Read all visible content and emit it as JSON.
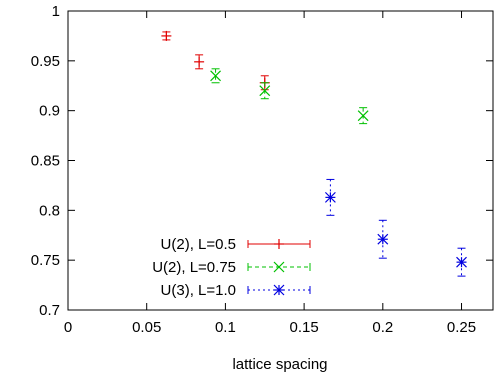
{
  "chart_data": {
    "type": "scatter",
    "title": "",
    "xlabel": "lattice spacing",
    "ylabel": "",
    "xlim": [
      0,
      0.27
    ],
    "ylim": [
      0.7,
      1.0
    ],
    "xticks": [
      0,
      0.05,
      0.1,
      0.15,
      0.2,
      0.25
    ],
    "xtick_labels": [
      "0",
      "0.05",
      "0.1",
      "0.15",
      "0.2",
      "0.25"
    ],
    "yticks": [
      0.7,
      0.75,
      0.8,
      0.85,
      0.9,
      0.95,
      1.0
    ],
    "ytick_labels": [
      "0.7",
      "0.75",
      "0.8",
      "0.85",
      "0.9",
      "0.95",
      "1"
    ],
    "grid": false,
    "legend_position": "bottom-left",
    "series": [
      {
        "name": "U(2), L=0.5",
        "color": "#e00000",
        "marker": "plus",
        "line_style": "solid",
        "points": [
          {
            "x": 0.0625,
            "y": 0.975,
            "err": 0.004
          },
          {
            "x": 0.0833,
            "y": 0.949,
            "err": 0.007
          },
          {
            "x": 0.125,
            "y": 0.928,
            "err": 0.007
          }
        ]
      },
      {
        "name": "U(2), L=0.75",
        "color": "#00c000",
        "marker": "cross",
        "line_style": "dashed",
        "points": [
          {
            "x": 0.09375,
            "y": 0.935,
            "err": 0.007
          },
          {
            "x": 0.125,
            "y": 0.92,
            "err": 0.008
          },
          {
            "x": 0.1875,
            "y": 0.895,
            "err": 0.008
          }
        ]
      },
      {
        "name": "U(3), L=1.0",
        "color": "#0000e0",
        "marker": "star",
        "line_style": "dotted",
        "points": [
          {
            "x": 0.1667,
            "y": 0.813,
            "err": 0.018
          },
          {
            "x": 0.2,
            "y": 0.771,
            "err": 0.019
          },
          {
            "x": 0.25,
            "y": 0.748,
            "err": 0.014
          }
        ]
      }
    ]
  }
}
